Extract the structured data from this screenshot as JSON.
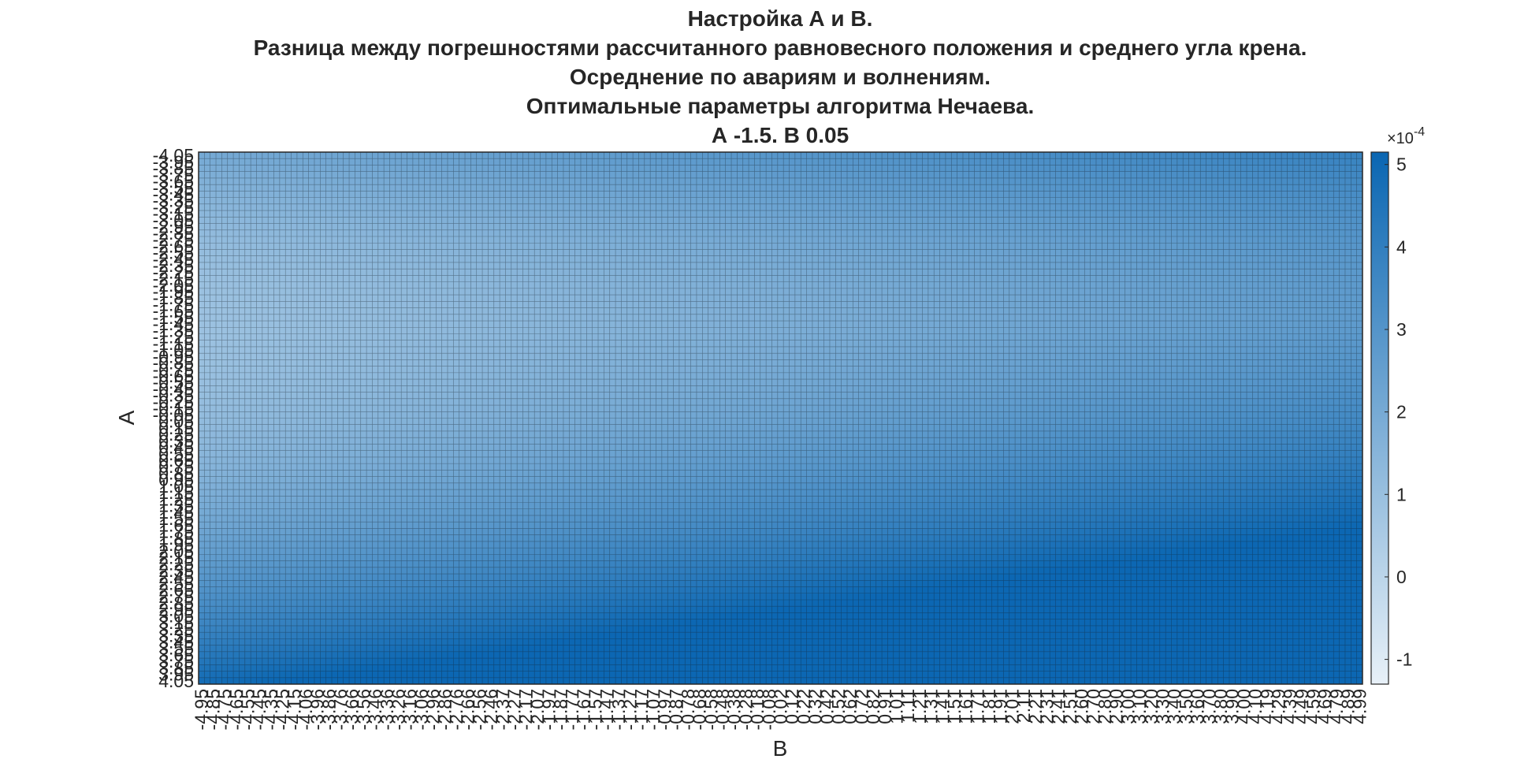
{
  "chart_data": {
    "type": "heatmap",
    "title_lines": [
      "Настройка А и В.",
      "Разница между погрешностями рассчитанного равновесного положения и среднего угла крена.",
      "Осреднение по авариям и волнениям.",
      "Оптимальные параметры алгоритма Нечаева.",
      "А -1.5. В 0.05"
    ],
    "xlabel": "B",
    "ylabel": "A",
    "x_range": [
      -4.95,
      4.99
    ],
    "y_range": [
      -4.05,
      4.05
    ],
    "x_label_first": "-4.95",
    "x_label_last": "4.99",
    "y_label_first": "-4.05",
    "y_label_last": "4.05",
    "n_cols": 201,
    "n_rows": 82,
    "colorbar": {
      "ticks": [
        -1,
        0,
        1,
        2,
        3,
        4,
        5
      ],
      "range": [
        -1.3,
        5.15
      ],
      "exponent_label": "×10",
      "exponent": "-4",
      "color_low": "#e8f1f8",
      "color_high": "#0a66b2"
    },
    "value_pattern": "lowest values near A ≈ -1.5 (upper-middle rows), increasing toward A = 4 and B = 5; maximum ≈ 5×10^-4 at the bottom-right corner",
    "grid": "cell edges drawn"
  }
}
